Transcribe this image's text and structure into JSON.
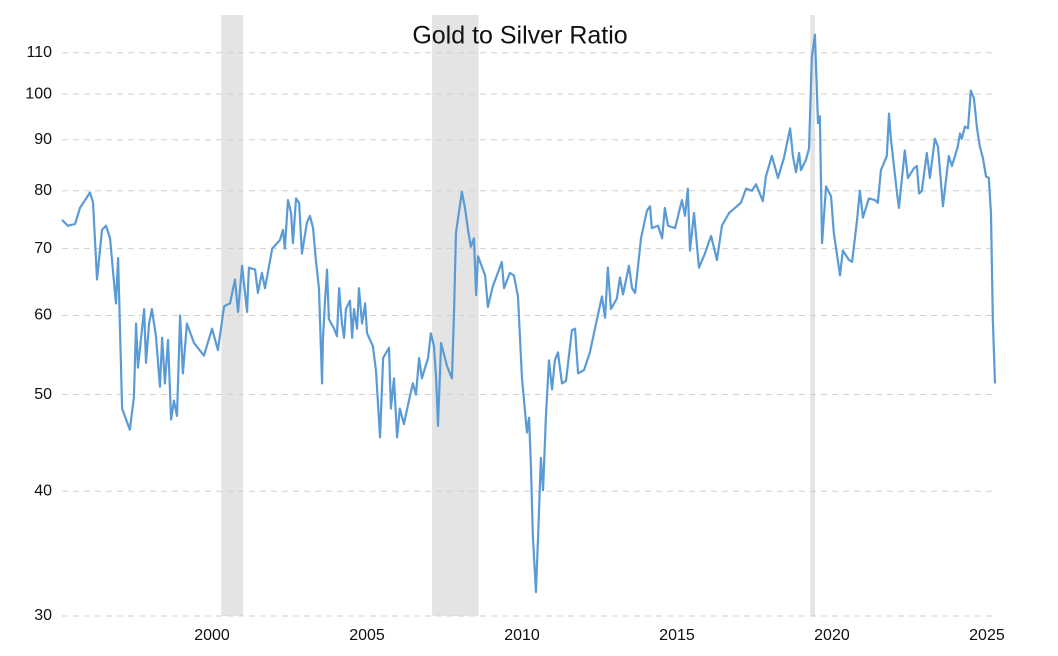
{
  "chart_data": {
    "type": "line",
    "title": "Gold to Silver Ratio",
    "color": "#5b9bd5",
    "recession_color": "#e4e4e4",
    "log_scale": true,
    "grid": true,
    "xlim": [
      1995.16,
      2025.26
    ],
    "xticks": [
      2000,
      2005,
      2010,
      2015,
      2020,
      2025
    ],
    "ylim": [
      30,
      120
    ],
    "yticks": [
      30,
      40,
      50,
      60,
      70,
      80,
      90,
      100,
      110
    ],
    "recessions": [
      [
        2000.3,
        2001.0
      ],
      [
        2007.1,
        2008.6
      ],
      [
        2019.3,
        2019.45
      ]
    ],
    "x": [
      1995.16,
      1995.35,
      1995.58,
      1995.74,
      1995.94,
      1996.06,
      1996.16,
      1996.29,
      1996.45,
      1996.58,
      1996.71,
      1996.9,
      1996.97,
      1997.1,
      1997.35,
      1997.48,
      1997.55,
      1997.61,
      1997.81,
      1997.87,
      1997.97,
      1998.06,
      1998.19,
      1998.32,
      1998.39,
      1998.48,
      1998.58,
      1998.68,
      1998.77,
      1998.87,
      1998.97,
      1999.06,
      1999.19,
      1999.42,
      1999.74,
      2000.0,
      2000.19,
      2000.39,
      2000.58,
      2000.74,
      2000.84,
      2000.97,
      2001.13,
      2001.19,
      2001.39,
      2001.48,
      2001.61,
      2001.71,
      2001.94,
      2002.19,
      2002.29,
      2002.35,
      2002.45,
      2002.55,
      2002.61,
      2002.71,
      2002.81,
      2002.9,
      2003.06,
      2003.16,
      2003.26,
      2003.35,
      2003.45,
      2003.55,
      2003.58,
      2003.65,
      2003.71,
      2003.77,
      2003.94,
      2004.03,
      2004.1,
      2004.19,
      2004.26,
      2004.32,
      2004.45,
      2004.52,
      2004.58,
      2004.68,
      2004.74,
      2004.84,
      2004.94,
      2005.0,
      2005.19,
      2005.29,
      2005.42,
      2005.52,
      2005.71,
      2005.77,
      2005.87,
      2005.97,
      2006.06,
      2006.19,
      2006.39,
      2006.48,
      2006.58,
      2006.68,
      2006.77,
      2006.97,
      2007.06,
      2007.16,
      2007.23,
      2007.29,
      2007.39,
      2007.58,
      2007.74,
      2007.81,
      2007.87,
      2008.06,
      2008.16,
      2008.26,
      2008.35,
      2008.45,
      2008.52,
      2008.58,
      2008.81,
      2008.9,
      2009.06,
      2009.26,
      2009.35,
      2009.42,
      2009.61,
      2009.74,
      2009.87,
      2010.0,
      2010.16,
      2010.23,
      2010.29,
      2010.35,
      2010.45,
      2010.52,
      2010.61,
      2010.68,
      2010.77,
      2010.87,
      2010.97,
      2011.06,
      2011.16,
      2011.29,
      2011.42,
      2011.61,
      2011.71,
      2011.81,
      2012.0,
      2012.19,
      2012.42,
      2012.58,
      2012.68,
      2012.77,
      2012.87,
      2013.06,
      2013.16,
      2013.26,
      2013.45,
      2013.55,
      2013.65,
      2013.84,
      2014.03,
      2014.13,
      2014.19,
      2014.39,
      2014.52,
      2014.61,
      2014.71,
      2014.94,
      2015.16,
      2015.26,
      2015.35,
      2015.42,
      2015.55,
      2015.71,
      2015.9,
      2016.1,
      2016.29,
      2016.45,
      2016.68,
      2016.87,
      2017.06,
      2017.23,
      2017.42,
      2017.55,
      2017.77,
      2017.87,
      2018.06,
      2018.26,
      2018.45,
      2018.65,
      2018.74,
      2018.84,
      2018.94,
      2019.0,
      2019.16,
      2019.26,
      2019.35,
      2019.45,
      2019.55,
      2019.61,
      2019.68,
      2019.81,
      2019.97,
      2020.06,
      2020.26,
      2020.35,
      2020.55,
      2020.65,
      2020.81,
      2020.9,
      2021.0,
      2021.19,
      2021.39,
      2021.48,
      2021.58,
      2021.77,
      2021.84,
      2021.9,
      2022.1,
      2022.16,
      2022.35,
      2022.45,
      2022.65,
      2022.74,
      2022.81,
      2022.9,
      2023.06,
      2023.16,
      2023.32,
      2023.42,
      2023.58,
      2023.77,
      2023.87,
      2024.06,
      2024.13,
      2024.19,
      2024.29,
      2024.39,
      2024.48,
      2024.58,
      2024.68,
      2024.77,
      2024.87,
      2024.97,
      2025.06,
      2025.13,
      2025.19,
      2025.26
    ],
    "values": [
      74.8,
      73.8,
      74.1,
      76.9,
      78.6,
      79.7,
      77.9,
      65.2,
      73.1,
      73.8,
      71.7,
      61.7,
      68.5,
      48.4,
      46.1,
      49.7,
      58.9,
      53.2,
      60.9,
      53.8,
      58.9,
      60.9,
      57.2,
      50.9,
      57.0,
      51.3,
      56.7,
      47.2,
      49.3,
      47.6,
      60.0,
      52.5,
      58.9,
      56.3,
      54.7,
      58.2,
      55.4,
      61.3,
      61.7,
      65.2,
      60.5,
      67.3,
      60.5,
      67.0,
      66.7,
      63.2,
      66.2,
      63.9,
      70.0,
      71.4,
      73.1,
      70.0,
      78.3,
      76.0,
      70.9,
      78.6,
      77.8,
      69.2,
      74.3,
      75.5,
      73.4,
      68.2,
      63.9,
      51.3,
      57.0,
      62.4,
      66.7,
      59.5,
      58.2,
      57.2,
      63.9,
      58.9,
      57.0,
      60.9,
      62.1,
      57.0,
      60.9,
      58.2,
      63.9,
      58.9,
      61.7,
      57.6,
      55.9,
      52.8,
      45.3,
      54.4,
      55.7,
      48.4,
      51.9,
      45.3,
      48.4,
      46.7,
      49.9,
      51.3,
      50.0,
      54.4,
      51.9,
      54.4,
      57.6,
      55.9,
      51.9,
      46.5,
      56.3,
      53.4,
      51.9,
      60.9,
      72.6,
      79.8,
      76.9,
      73.1,
      70.3,
      71.7,
      62.9,
      68.8,
      65.8,
      61.2,
      64.2,
      66.7,
      67.9,
      63.9,
      66.2,
      65.8,
      62.7,
      51.9,
      45.8,
      47.4,
      42.2,
      36.1,
      31.7,
      36.1,
      43.2,
      40.1,
      47.4,
      54.1,
      50.6,
      54.1,
      55.1,
      51.3,
      51.6,
      58.0,
      58.2,
      52.5,
      52.9,
      55.1,
      59.5,
      62.7,
      59.7,
      67.0,
      60.9,
      62.4,
      65.5,
      63.0,
      67.3,
      63.9,
      63.2,
      71.7,
      76.4,
      77.2,
      73.4,
      73.8,
      71.7,
      76.9,
      73.8,
      73.4,
      78.3,
      75.5,
      80.4,
      69.7,
      76.0,
      67.0,
      69.2,
      72.1,
      68.2,
      73.8,
      76.0,
      76.9,
      77.8,
      80.4,
      80.0,
      81.2,
      78.1,
      82.7,
      86.7,
      82.4,
      86.3,
      92.4,
      86.7,
      83.5,
      87.3,
      83.9,
      85.9,
      88.2,
      108.8,
      114.7,
      93.5,
      95.0,
      70.9,
      80.8,
      79.0,
      72.6,
      65.8,
      69.7,
      68.2,
      67.9,
      74.8,
      80.0,
      75.2,
      78.6,
      78.3,
      77.8,
      83.9,
      86.7,
      95.6,
      90.2,
      79.5,
      76.9,
      87.8,
      82.4,
      84.3,
      84.7,
      79.5,
      80.0,
      87.3,
      82.4,
      90.2,
      88.6,
      77.2,
      86.7,
      84.7,
      88.6,
      91.3,
      90.2,
      92.8,
      92.4,
      100.8,
      99.0,
      92.4,
      88.6,
      86.3,
      82.7,
      82.4,
      76.0,
      59.5,
      51.3
    ]
  }
}
